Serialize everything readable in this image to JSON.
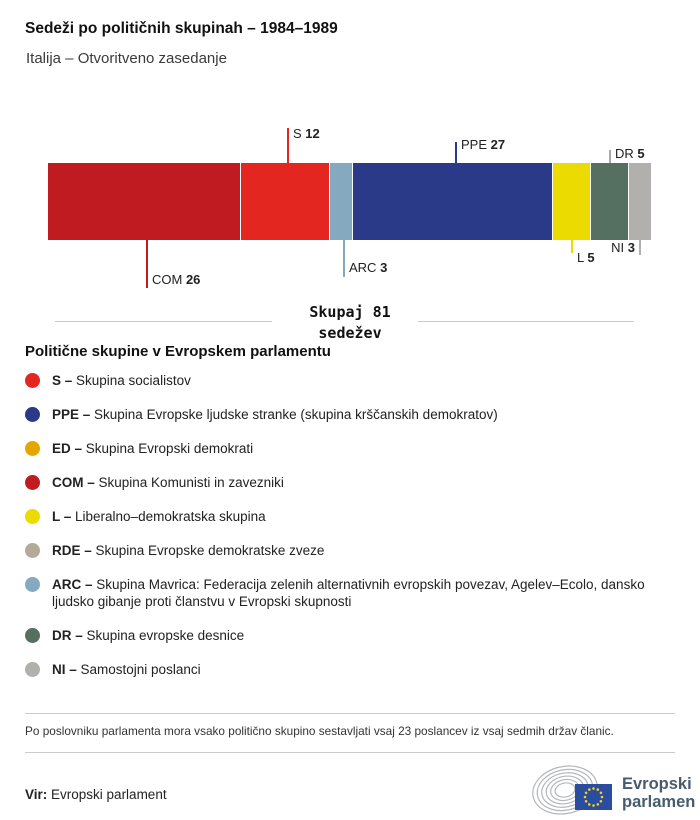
{
  "header": {
    "title": "Sedeži po političnih skupinah – 1984–1989",
    "subtitle": "Italija – Otvoritveno zasedanje"
  },
  "chart_data": {
    "type": "bar",
    "layout": "horizontal-stacked",
    "title": "Sedeži po političnih skupinah – 1984–1989",
    "subtitle": "Italija – Otvoritveno zasedanje",
    "total_seats": 81,
    "total": {
      "word": "Skupaj",
      "value": "81",
      "unit": "sedežev"
    },
    "segments": [
      {
        "code": "COM",
        "seats": 26,
        "color": "#c01b20",
        "callout": "bottom"
      },
      {
        "code": "S",
        "seats": 12,
        "color": "#e3261f",
        "callout": "top"
      },
      {
        "code": "ARC",
        "seats": 3,
        "color": "#85a9be",
        "callout": "bottom"
      },
      {
        "code": "PPE",
        "seats": 27,
        "color": "#2a3a88",
        "callout": "top"
      },
      {
        "code": "L",
        "seats": 5,
        "color": "#ebdb00",
        "callout": "bottom"
      },
      {
        "code": "DR",
        "seats": 5,
        "color": "#556f60",
        "callout": "top"
      },
      {
        "code": "NI",
        "seats": 3,
        "color": "#b2b0ad",
        "callout": "bottom"
      }
    ]
  },
  "legend": {
    "heading": "Politične skupine v Evropskem parlamentu",
    "separator": " – ",
    "items": [
      {
        "code": "S",
        "color": "#e3261f",
        "label": "Skupina socialistov"
      },
      {
        "code": "PPE",
        "color": "#2a3a88",
        "label": "Skupina Evropske ljudske stranke (skupina krščanskih demokratov)"
      },
      {
        "code": "ED",
        "color": "#e3a600",
        "label": "Skupina Evropski demokrati"
      },
      {
        "code": "COM",
        "color": "#c01b20",
        "label": "Skupina Komunisti in zavezniki"
      },
      {
        "code": "L",
        "color": "#ebdb00",
        "label": "Liberalno–demokratska skupina"
      },
      {
        "code": "RDE",
        "color": "#b4aa99",
        "label": "Skupina Evropske demokratske zveze"
      },
      {
        "code": "ARC",
        "color": "#85a9be",
        "label": "Skupina Mavrica: Federacija zelenih alternativnih evropskih povezav, Agelev–Ecolo, dansko ljudsko gibanje proti članstvu v Evropski skupnosti"
      },
      {
        "code": "DR",
        "color": "#556f60",
        "label": "Skupina evropske desnice"
      },
      {
        "code": "NI",
        "color": "#b2b0ad",
        "label": "Samostojni poslanci"
      }
    ]
  },
  "footer": {
    "note": "Po poslovniku parlamenta mora vsako politično skupino sestavljati vsaj 23 poslancev iz vsaj sedmih držav članic.",
    "source_label": "Vir:",
    "source": "Evropski parlament",
    "logo": {
      "line1": "Evropski",
      "line2": "parlament",
      "text_color": "#475d6d",
      "flag_color": "#2a4da0",
      "star_color": "#f7d117"
    }
  }
}
